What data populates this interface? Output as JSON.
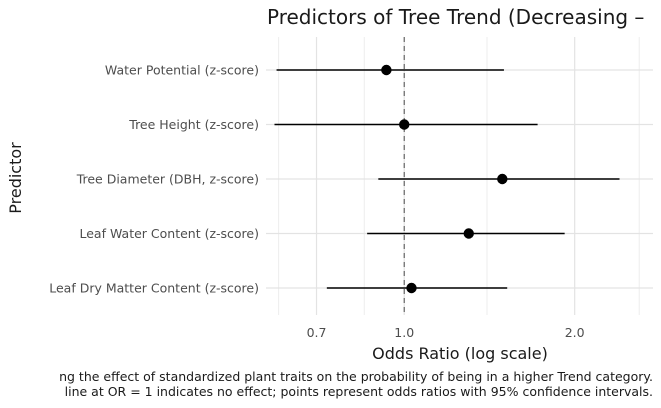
{
  "chart_data": {
    "type": "forest",
    "title": "Predictors of Tree Trend (Decreasing –",
    "xlabel": "Odds Ratio (log scale)",
    "ylabel": "Predictor",
    "x_scale": "log",
    "xlim": [
      0.57,
      2.75
    ],
    "x_ticks": [
      {
        "value": 0.7,
        "label": "0.7"
      },
      {
        "value": 1.0,
        "label": "1.0"
      },
      {
        "value": 2.0,
        "label": "2.0"
      }
    ],
    "x_minor_gridlines": [
      0.6,
      0.85,
      1.4,
      2.6
    ],
    "reference_line": 1.0,
    "grid": true,
    "categories": [
      "Water Potential (z-score)",
      "Tree Height (z-score)",
      "Tree Diameter (DBH, z-score)",
      "Leaf Water Content (z-score)",
      "Leaf Dry Matter Content (z-score)"
    ],
    "series": [
      {
        "estimate": [
          0.93,
          1.0,
          1.49,
          1.3,
          1.03
        ],
        "ci_low": [
          0.595,
          0.59,
          0.9,
          0.86,
          0.73
        ],
        "ci_high": [
          1.5,
          1.72,
          2.4,
          1.92,
          1.52
        ]
      }
    ],
    "caption_lines": [
      "ng the effect of standardized plant traits on the probability of being in a higher Trend category.",
      " line at OR = 1 indicates no effect; points represent odds ratios with 95% confidence intervals."
    ]
  }
}
